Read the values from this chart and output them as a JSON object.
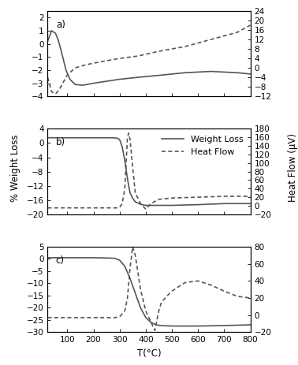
{
  "title": "",
  "xlabel": "T(°C)",
  "ylabel_left": "% Weight Loss",
  "ylabel_right": "Heat Flow (μV)",
  "x_range": [
    25,
    800
  ],
  "subplots": [
    {
      "label": "a)",
      "ylim_left": [
        -4,
        2.5
      ],
      "ylim_right": [
        -12,
        24
      ],
      "yticks_left": [
        -4,
        -3,
        -2,
        -1,
        0,
        1,
        2
      ],
      "yticks_right": [
        -12,
        -8,
        -4,
        0,
        4,
        8,
        12,
        16,
        20,
        24
      ],
      "weight_loss": {
        "x": [
          25,
          40,
          55,
          65,
          75,
          85,
          95,
          110,
          130,
          160,
          200,
          250,
          300,
          370,
          450,
          550,
          650,
          750,
          800
        ],
        "y": [
          0.2,
          1.0,
          0.8,
          0.3,
          -0.4,
          -1.2,
          -2.0,
          -2.7,
          -3.1,
          -3.15,
          -3.0,
          -2.85,
          -2.7,
          -2.55,
          -2.4,
          -2.2,
          -2.1,
          -2.2,
          -2.3
        ]
      },
      "heat_flow": {
        "x": [
          25,
          40,
          55,
          70,
          85,
          100,
          130,
          160,
          200,
          250,
          300,
          370,
          450,
          550,
          650,
          750,
          800
        ],
        "y": [
          -4,
          -10,
          -11,
          -9,
          -6,
          -3,
          0,
          1,
          2,
          3,
          4,
          5,
          7,
          9,
          12,
          15,
          18
        ]
      }
    },
    {
      "label": "b)",
      "ylim_left": [
        -20,
        4
      ],
      "ylim_right": [
        -20,
        180
      ],
      "yticks_left": [
        -20,
        -16,
        -12,
        -8,
        -4,
        0,
        4
      ],
      "yticks_right": [
        -20,
        0,
        20,
        40,
        60,
        80,
        100,
        120,
        140,
        160,
        180
      ],
      "weight_loss": {
        "x": [
          25,
          100,
          200,
          270,
          290,
          300,
          310,
          320,
          330,
          340,
          350,
          360,
          380,
          400,
          430,
          500,
          600,
          700,
          800
        ],
        "y": [
          1.5,
          1.5,
          1.5,
          1.5,
          1.4,
          1.0,
          -1.0,
          -5.0,
          -10.0,
          -14.0,
          -15.5,
          -16.5,
          -17.2,
          -17.5,
          -17.5,
          -17.5,
          -17.3,
          -17.0,
          -17.0
        ]
      },
      "heat_flow": {
        "x": [
          25,
          100,
          200,
          270,
          290,
          300,
          310,
          320,
          325,
          330,
          335,
          340,
          350,
          360,
          380,
          400,
          420,
          450,
          500,
          600,
          700,
          800
        ],
        "y": [
          -5,
          -5,
          -5,
          -5,
          -5,
          -4,
          5,
          40,
          100,
          160,
          170,
          155,
          90,
          30,
          5,
          -8,
          5,
          15,
          18,
          20,
          22,
          22
        ]
      }
    },
    {
      "label": "c)",
      "ylim_left": [
        -30,
        5
      ],
      "ylim_right": [
        -20,
        80
      ],
      "yticks_left": [
        -30,
        -25,
        -20,
        -15,
        -10,
        -5,
        0,
        5
      ],
      "yticks_right": [
        -20,
        0,
        20,
        40,
        60,
        80
      ],
      "weight_loss": {
        "x": [
          25,
          100,
          200,
          280,
          300,
          320,
          340,
          360,
          380,
          400,
          420,
          440,
          460,
          500,
          550,
          600,
          700,
          800
        ],
        "y": [
          0.5,
          0.5,
          0.5,
          0.3,
          -0.5,
          -3.0,
          -8.0,
          -14.0,
          -20.0,
          -24.0,
          -26.0,
          -27.0,
          -27.3,
          -27.5,
          -27.5,
          -27.5,
          -27.3,
          -27.0
        ]
      },
      "heat_flow": {
        "x": [
          25,
          100,
          200,
          280,
          300,
          320,
          330,
          340,
          350,
          360,
          380,
          400,
          420,
          430,
          435,
          440,
          450,
          460,
          480,
          500,
          550,
          600,
          650,
          700,
          750,
          800
        ],
        "y": [
          -3,
          -3,
          -3,
          -3,
          -2,
          5,
          20,
          55,
          80,
          70,
          30,
          5,
          -8,
          -15,
          -18,
          -10,
          5,
          15,
          22,
          28,
          38,
          40,
          35,
          28,
          22,
          20
        ]
      }
    }
  ],
  "line_color": "#555555",
  "line_width": 1.2,
  "font_size": 7.5,
  "label_fontsize": 8.5,
  "legend_fontsize": 8
}
